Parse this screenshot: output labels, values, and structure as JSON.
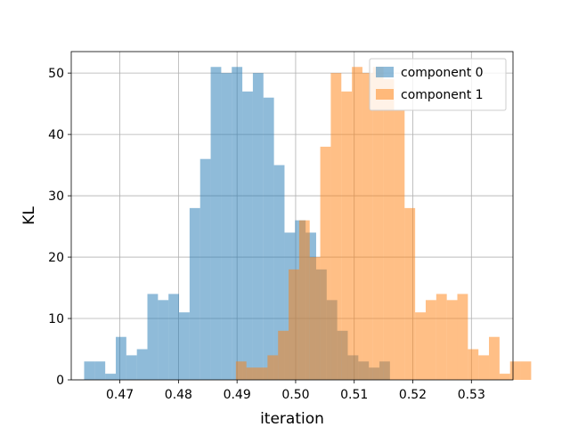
{
  "chart_data": {
    "type": "bar",
    "subtype": "overlaid-histogram",
    "title": "",
    "xlabel": "iteration",
    "ylabel": "KL",
    "xlim": [
      0.4617,
      0.5371
    ],
    "ylim": [
      0,
      53.5
    ],
    "x_ticks": [
      0.47,
      0.48,
      0.49,
      0.5,
      0.51,
      0.52,
      0.53
    ],
    "x_tick_labels": [
      "0.47",
      "0.48",
      "0.49",
      "0.50",
      "0.51",
      "0.52",
      "0.53"
    ],
    "y_ticks": [
      0,
      10,
      20,
      30,
      40,
      50
    ],
    "y_tick_labels": [
      "0",
      "10",
      "20",
      "30",
      "40",
      "50"
    ],
    "grid": true,
    "legend_position": "top-right",
    "series": [
      {
        "name": "component 0",
        "color": "#1f77b4",
        "alpha": 0.5,
        "bin_start": 0.4639,
        "bin_width": 0.0018,
        "values": [
          3,
          3,
          1,
          7,
          4,
          5,
          14,
          13,
          14,
          11,
          28,
          36,
          51,
          50,
          51,
          47,
          50,
          46,
          35,
          24,
          26,
          24,
          18,
          13,
          8,
          4,
          3,
          2,
          3
        ]
      },
      {
        "name": "component 1",
        "color": "#ff7f0e",
        "alpha": 0.5,
        "bin_start": 0.4898,
        "bin_width": 0.0018,
        "values": [
          3,
          2,
          2,
          4,
          8,
          18,
          26,
          20,
          38,
          50,
          47,
          51,
          50,
          51,
          49,
          44,
          28,
          11,
          13,
          14,
          13,
          14,
          5,
          4,
          7,
          1,
          3,
          3
        ]
      }
    ]
  }
}
